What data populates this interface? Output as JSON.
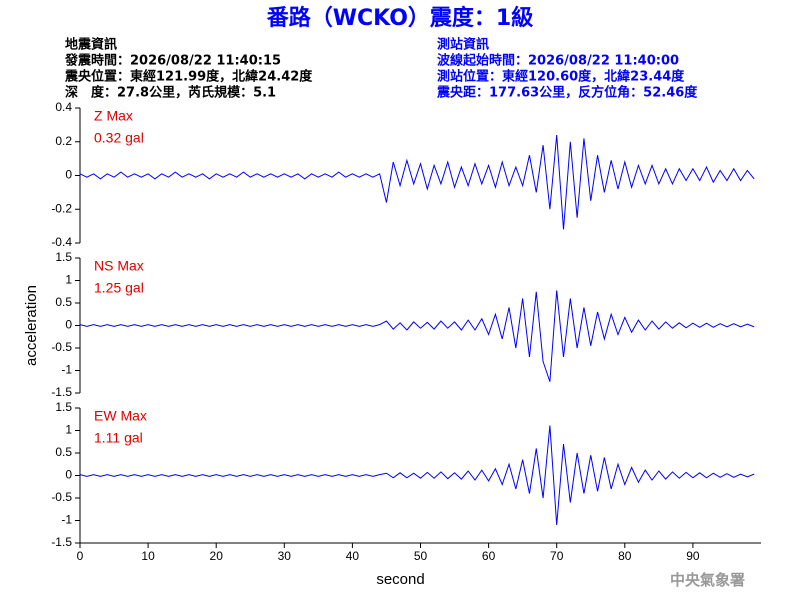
{
  "header": {
    "title": "番路（WCKO）震度：1級",
    "left": [
      "地震資訊",
      "發震時間：2026/08/22 11:40:15",
      "震央位置：東經121.99度，北緯24.42度",
      "深　度：27.8公里，芮氏規模：5.1"
    ],
    "right": [
      "測站資訊",
      "波線起始時間：2026/08/22 11:40:00",
      "測站位置：東經120.60度，北緯23.44度",
      "震央距：177.63公里，反方位角：52.46度"
    ]
  },
  "footer": "中央氣象署",
  "chart_data": [
    {
      "type": "line",
      "annotations": [
        "Z Max",
        "0.32 gal"
      ],
      "x": [
        0,
        1,
        2,
        3,
        4,
        5,
        6,
        7,
        8,
        9,
        10,
        11,
        12,
        13,
        14,
        15,
        16,
        17,
        18,
        19,
        20,
        21,
        22,
        23,
        24,
        25,
        26,
        27,
        28,
        29,
        30,
        31,
        32,
        33,
        34,
        35,
        36,
        37,
        38,
        39,
        40,
        41,
        42,
        43,
        44,
        45,
        46,
        47,
        48,
        49,
        50,
        51,
        52,
        53,
        54,
        55,
        56,
        57,
        58,
        59,
        60,
        61,
        62,
        63,
        64,
        65,
        66,
        67,
        68,
        69,
        70,
        71,
        72,
        73,
        74,
        75,
        76,
        77,
        78,
        79,
        80,
        81,
        82,
        83,
        84,
        85,
        86,
        87,
        88,
        89,
        90,
        91,
        92,
        93,
        94,
        95,
        96,
        97,
        98,
        99
      ],
      "series": [
        {
          "color": "#0000ff",
          "values": [
            0.01,
            -0.01,
            0.01,
            -0.02,
            0.01,
            -0.01,
            0.02,
            -0.01,
            0.01,
            -0.01,
            0.01,
            -0.02,
            0.01,
            -0.01,
            0.02,
            -0.01,
            0.01,
            -0.01,
            0.01,
            -0.02,
            0.01,
            -0.01,
            0.01,
            -0.01,
            0.02,
            -0.01,
            0.01,
            -0.01,
            0.01,
            -0.01,
            0.01,
            -0.01,
            0.01,
            -0.02,
            0.01,
            -0.01,
            0.01,
            -0.01,
            0.02,
            -0.01,
            0.01,
            -0.01,
            0.01,
            -0.01,
            0.01,
            -0.16,
            0.08,
            -0.06,
            0.09,
            -0.05,
            0.07,
            -0.08,
            0.06,
            -0.05,
            0.08,
            -0.07,
            0.05,
            -0.06,
            0.07,
            -0.05,
            0.06,
            -0.07,
            0.08,
            -0.06,
            0.05,
            -0.06,
            0.12,
            -0.1,
            0.18,
            -0.2,
            0.24,
            -0.32,
            0.2,
            -0.25,
            0.22,
            -0.15,
            0.12,
            -0.1,
            0.09,
            -0.08,
            0.08,
            -0.07,
            0.06,
            -0.05,
            0.06,
            -0.05,
            0.04,
            -0.05,
            0.04,
            -0.03,
            0.04,
            -0.03,
            0.05,
            -0.04,
            0.03,
            -0.03,
            0.04,
            -0.03,
            0.03,
            -0.02
          ]
        }
      ],
      "xlim": [
        0,
        100
      ],
      "ylim": [
        -0.4,
        0.4
      ],
      "yticks": [
        -0.4,
        -0.2,
        0,
        0.2,
        0.4
      ]
    },
    {
      "type": "line",
      "annotations": [
        "NS Max",
        "1.25 gal"
      ],
      "ylabel": "acceleration",
      "x": [
        0,
        1,
        2,
        3,
        4,
        5,
        6,
        7,
        8,
        9,
        10,
        11,
        12,
        13,
        14,
        15,
        16,
        17,
        18,
        19,
        20,
        21,
        22,
        23,
        24,
        25,
        26,
        27,
        28,
        29,
        30,
        31,
        32,
        33,
        34,
        35,
        36,
        37,
        38,
        39,
        40,
        41,
        42,
        43,
        44,
        45,
        46,
        47,
        48,
        49,
        50,
        51,
        52,
        53,
        54,
        55,
        56,
        57,
        58,
        59,
        60,
        61,
        62,
        63,
        64,
        65,
        66,
        67,
        68,
        69,
        70,
        71,
        72,
        73,
        74,
        75,
        76,
        77,
        78,
        79,
        80,
        81,
        82,
        83,
        84,
        85,
        86,
        87,
        88,
        89,
        90,
        91,
        92,
        93,
        94,
        95,
        96,
        97,
        98,
        99
      ],
      "series": [
        {
          "color": "#0000ff",
          "values": [
            0.02,
            -0.02,
            0.02,
            -0.02,
            0.02,
            -0.02,
            0.02,
            -0.02,
            0.02,
            -0.02,
            0.02,
            -0.02,
            0.02,
            -0.02,
            0.02,
            -0.02,
            0.02,
            -0.02,
            0.02,
            -0.02,
            0.02,
            -0.02,
            0.02,
            -0.02,
            0.02,
            -0.02,
            0.02,
            -0.02,
            0.02,
            -0.02,
            0.02,
            -0.02,
            0.02,
            -0.02,
            0.02,
            -0.02,
            0.02,
            -0.02,
            0.02,
            -0.02,
            0.02,
            -0.02,
            0.02,
            -0.02,
            0.02,
            0.1,
            -0.08,
            0.06,
            -0.1,
            0.08,
            -0.06,
            0.07,
            -0.08,
            0.1,
            -0.06,
            0.08,
            -0.1,
            0.12,
            -0.1,
            0.15,
            -0.2,
            0.25,
            -0.3,
            0.4,
            -0.5,
            0.6,
            -0.7,
            0.75,
            -0.8,
            -1.25,
            0.78,
            -0.7,
            0.6,
            -0.5,
            0.4,
            -0.45,
            0.3,
            -0.3,
            0.25,
            -0.2,
            0.18,
            -0.15,
            0.12,
            -0.1,
            0.1,
            -0.08,
            0.08,
            -0.06,
            0.06,
            -0.05,
            0.05,
            -0.04,
            0.05,
            -0.04,
            0.04,
            -0.03,
            0.04,
            -0.03,
            0.03,
            -0.03
          ]
        }
      ],
      "xlim": [
        0,
        100
      ],
      "ylim": [
        -1.5,
        1.5
      ],
      "yticks": [
        -1.5,
        -1,
        -0.5,
        0,
        0.5,
        1,
        1.5
      ]
    },
    {
      "type": "line",
      "annotations": [
        "EW Max",
        "1.11 gal"
      ],
      "xlabel": "second",
      "x": [
        0,
        1,
        2,
        3,
        4,
        5,
        6,
        7,
        8,
        9,
        10,
        11,
        12,
        13,
        14,
        15,
        16,
        17,
        18,
        19,
        20,
        21,
        22,
        23,
        24,
        25,
        26,
        27,
        28,
        29,
        30,
        31,
        32,
        33,
        34,
        35,
        36,
        37,
        38,
        39,
        40,
        41,
        42,
        43,
        44,
        45,
        46,
        47,
        48,
        49,
        50,
        51,
        52,
        53,
        54,
        55,
        56,
        57,
        58,
        59,
        60,
        61,
        62,
        63,
        64,
        65,
        66,
        67,
        68,
        69,
        70,
        71,
        72,
        73,
        74,
        75,
        76,
        77,
        78,
        79,
        80,
        81,
        82,
        83,
        84,
        85,
        86,
        87,
        88,
        89,
        90,
        91,
        92,
        93,
        94,
        95,
        96,
        97,
        98,
        99
      ],
      "series": [
        {
          "color": "#0000ff",
          "values": [
            0.02,
            -0.02,
            0.02,
            -0.02,
            0.02,
            -0.02,
            0.02,
            -0.02,
            0.02,
            -0.02,
            0.02,
            -0.02,
            0.02,
            -0.02,
            0.02,
            -0.02,
            0.02,
            -0.02,
            0.02,
            -0.02,
            0.02,
            -0.02,
            0.02,
            -0.02,
            0.02,
            -0.02,
            0.02,
            -0.02,
            0.02,
            -0.02,
            0.02,
            -0.02,
            0.02,
            -0.02,
            0.02,
            -0.02,
            0.02,
            -0.02,
            0.02,
            -0.02,
            0.02,
            -0.02,
            0.02,
            -0.02,
            0.02,
            0.05,
            -0.05,
            0.06,
            -0.05,
            0.05,
            -0.06,
            0.07,
            -0.06,
            0.08,
            -0.07,
            0.06,
            -0.08,
            0.1,
            -0.1,
            0.12,
            -0.12,
            0.15,
            -0.2,
            0.25,
            -0.3,
            0.35,
            -0.4,
            0.6,
            -0.5,
            1.11,
            -1.1,
            0.7,
            -0.6,
            0.5,
            -0.4,
            0.45,
            -0.35,
            0.4,
            -0.3,
            0.25,
            -0.2,
            0.18,
            -0.15,
            0.12,
            -0.1,
            0.1,
            -0.08,
            0.08,
            -0.06,
            0.07,
            -0.05,
            0.06,
            -0.05,
            0.05,
            -0.04,
            0.04,
            -0.04,
            0.03,
            -0.03,
            0.03
          ]
        }
      ],
      "xlim": [
        0,
        100
      ],
      "ylim": [
        -1.5,
        1.5
      ],
      "yticks": [
        -1.5,
        -1,
        -0.5,
        0,
        0.5,
        1,
        1.5
      ],
      "xticks": [
        0,
        10,
        20,
        30,
        40,
        50,
        60,
        70,
        80,
        90
      ]
    }
  ]
}
